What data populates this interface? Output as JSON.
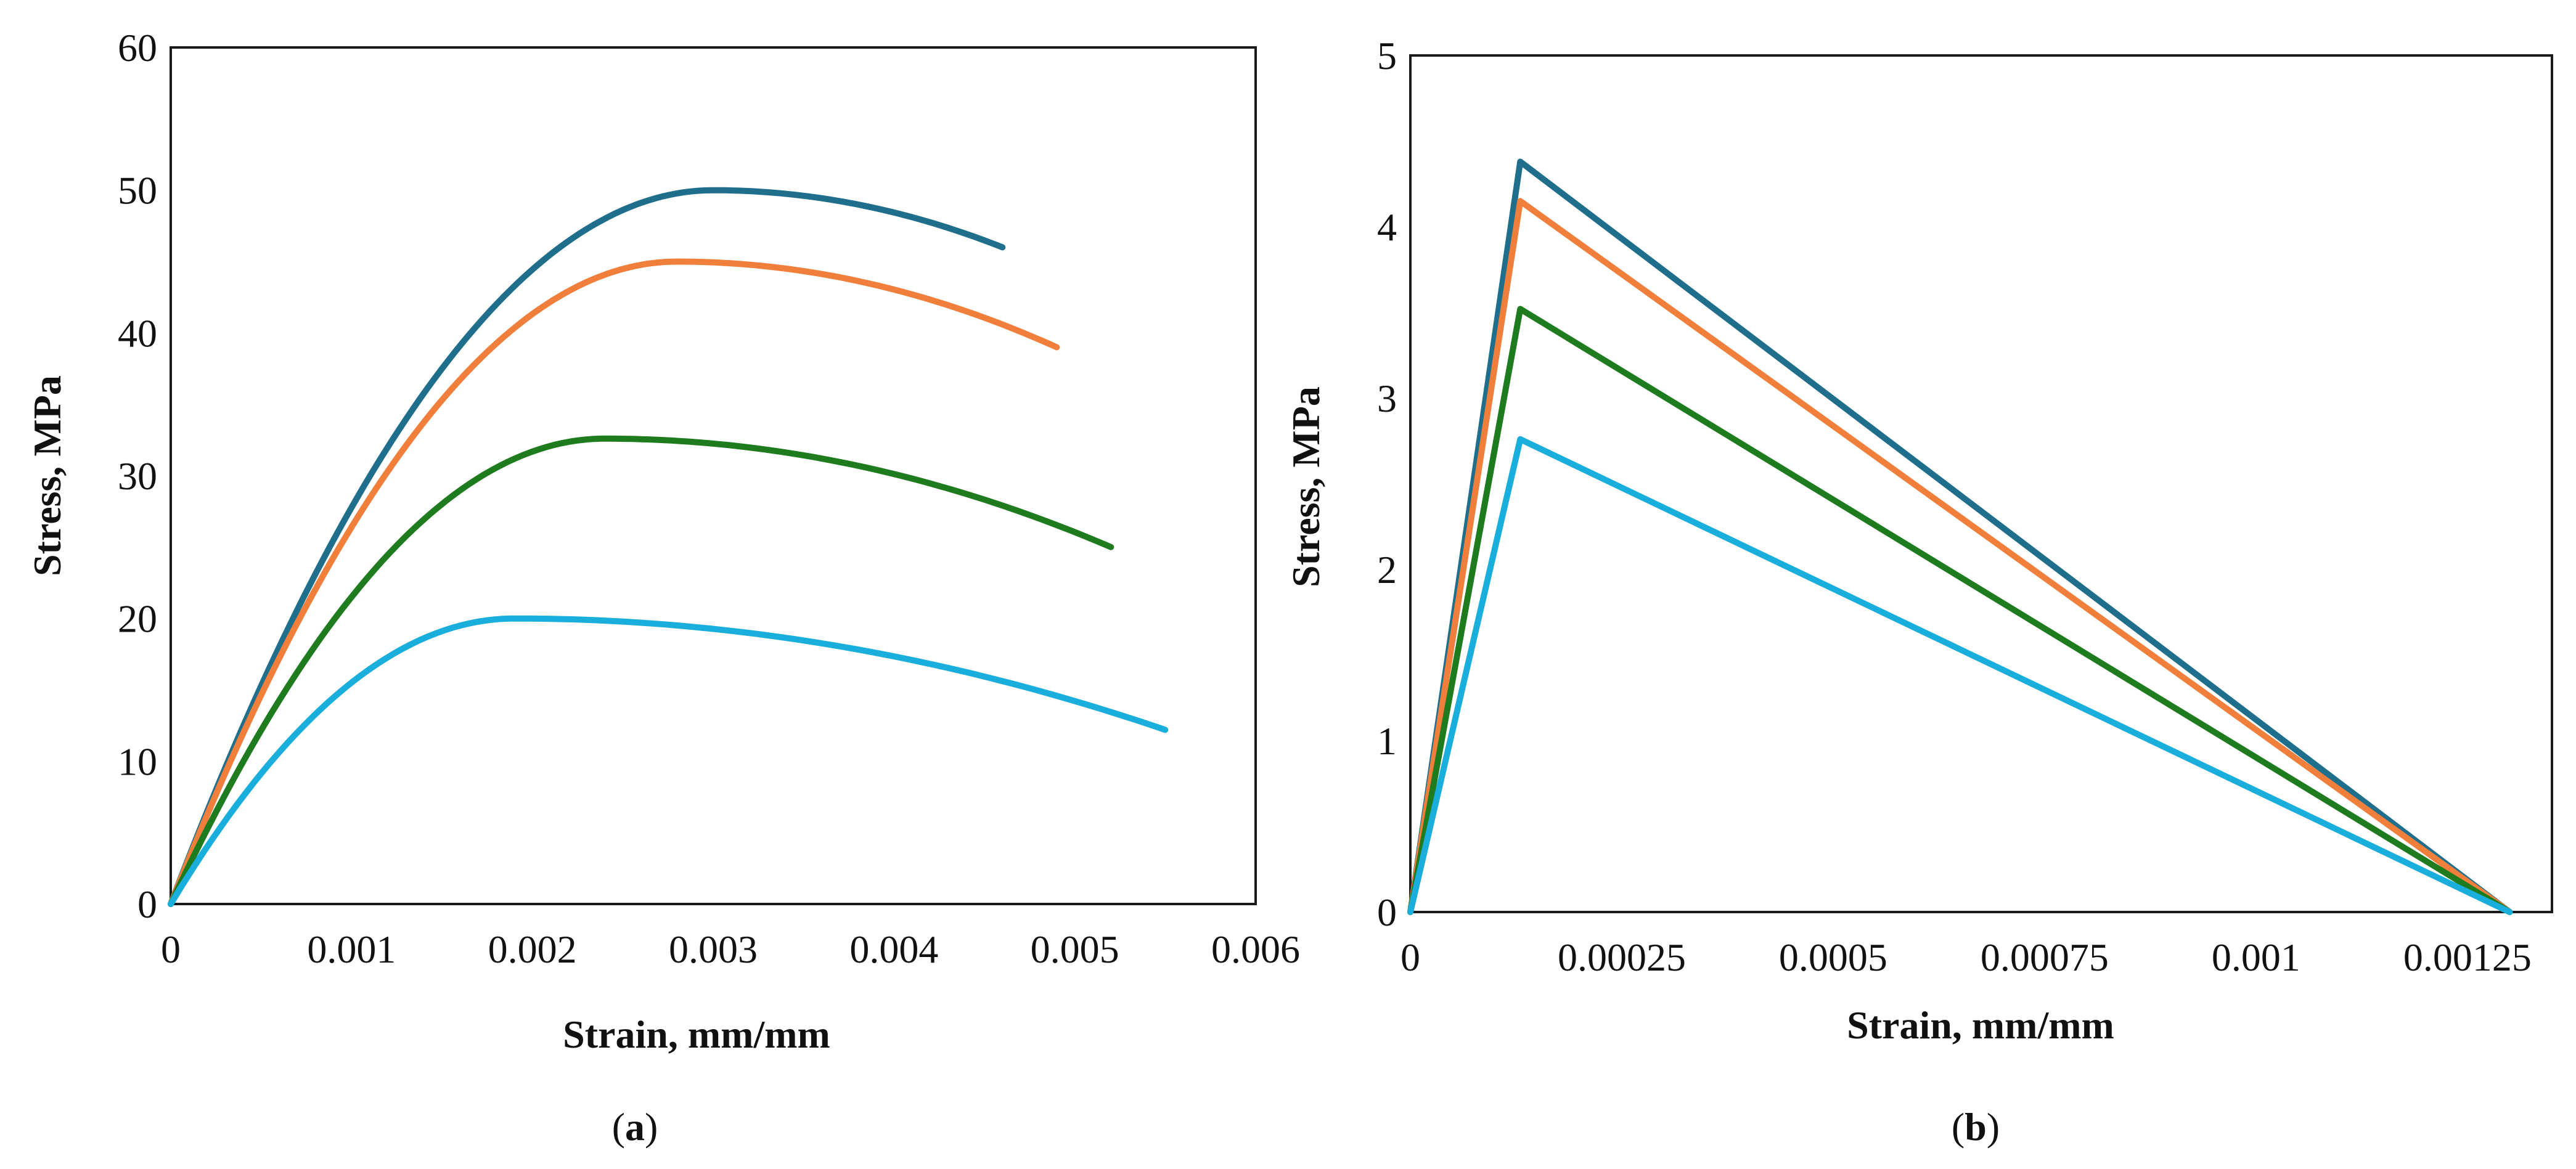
{
  "chart_data": [
    {
      "type": "line",
      "panel": "a",
      "caption_label": "a",
      "title": "",
      "xlabel": "Strain, mm/mm",
      "ylabel": "Stress, MPa",
      "xlim": [
        0,
        0.006
      ],
      "ylim": [
        0,
        60
      ],
      "x_ticks": [
        {
          "value": 0,
          "label": "0"
        },
        {
          "value": 0.001,
          "label": "0.001"
        },
        {
          "value": 0.002,
          "label": "0.002"
        },
        {
          "value": 0.003,
          "label": "0.003"
        },
        {
          "value": 0.004,
          "label": "0.004"
        },
        {
          "value": 0.005,
          "label": "0.005"
        },
        {
          "value": 0.006,
          "label": "0.006"
        }
      ],
      "y_ticks": [
        {
          "value": 0,
          "label": "0"
        },
        {
          "value": 10,
          "label": "10"
        },
        {
          "value": 20,
          "label": "20"
        },
        {
          "value": 30,
          "label": "30"
        },
        {
          "value": 40,
          "label": "40"
        },
        {
          "value": 50,
          "label": "50"
        },
        {
          "value": 60,
          "label": "60"
        }
      ],
      "grid": false,
      "legend": "none",
      "series": [
        {
          "color": "#1f6e8c",
          "peak_stress": 50,
          "peak_strain": 0.003,
          "end_strain": 0.0046,
          "end_stress": 46
        },
        {
          "color": "#f07f3c",
          "peak_stress": 45,
          "peak_strain": 0.0028,
          "end_strain": 0.0049,
          "end_stress": 39
        },
        {
          "color": "#1e7b1e",
          "peak_stress": 32.6,
          "peak_strain": 0.0024,
          "end_strain": 0.0052,
          "end_stress": 25
        },
        {
          "color": "#1aaedc",
          "peak_stress": 20,
          "peak_strain": 0.0019,
          "end_strain": 0.0055,
          "end_stress": 12.2
        }
      ]
    },
    {
      "type": "line",
      "panel": "b",
      "caption_label": "b",
      "title": "",
      "xlabel": "Strain, mm/mm",
      "ylabel": "Stress, MPa",
      "xlim": [
        0,
        0.00135
      ],
      "ylim": [
        0,
        5
      ],
      "x_ticks": [
        {
          "value": 0,
          "label": "0"
        },
        {
          "value": 0.00025,
          "label": "0.00025"
        },
        {
          "value": 0.0005,
          "label": "0.0005"
        },
        {
          "value": 0.00075,
          "label": "0.00075"
        },
        {
          "value": 0.001,
          "label": "0.001"
        },
        {
          "value": 0.00125,
          "label": "0.00125"
        }
      ],
      "y_ticks": [
        {
          "value": 0,
          "label": "0"
        },
        {
          "value": 1,
          "label": "1"
        },
        {
          "value": 2,
          "label": "2"
        },
        {
          "value": 3,
          "label": "3"
        },
        {
          "value": 4,
          "label": "4"
        },
        {
          "value": 5,
          "label": "5"
        }
      ],
      "grid": false,
      "legend": "none",
      "series": [
        {
          "color": "#1f6e8c",
          "x": [
            0,
            0.00013,
            0.0013
          ],
          "y": [
            0,
            4.38,
            0
          ]
        },
        {
          "color": "#f07f3c",
          "x": [
            0,
            0.00013,
            0.0013
          ],
          "y": [
            0,
            4.15,
            0
          ]
        },
        {
          "color": "#1e7b1e",
          "x": [
            0,
            0.00013,
            0.0013
          ],
          "y": [
            0,
            3.52,
            0
          ]
        },
        {
          "color": "#1aaedc",
          "x": [
            0,
            0.00013,
            0.0013
          ],
          "y": [
            0,
            2.76,
            0
          ]
        }
      ]
    }
  ]
}
